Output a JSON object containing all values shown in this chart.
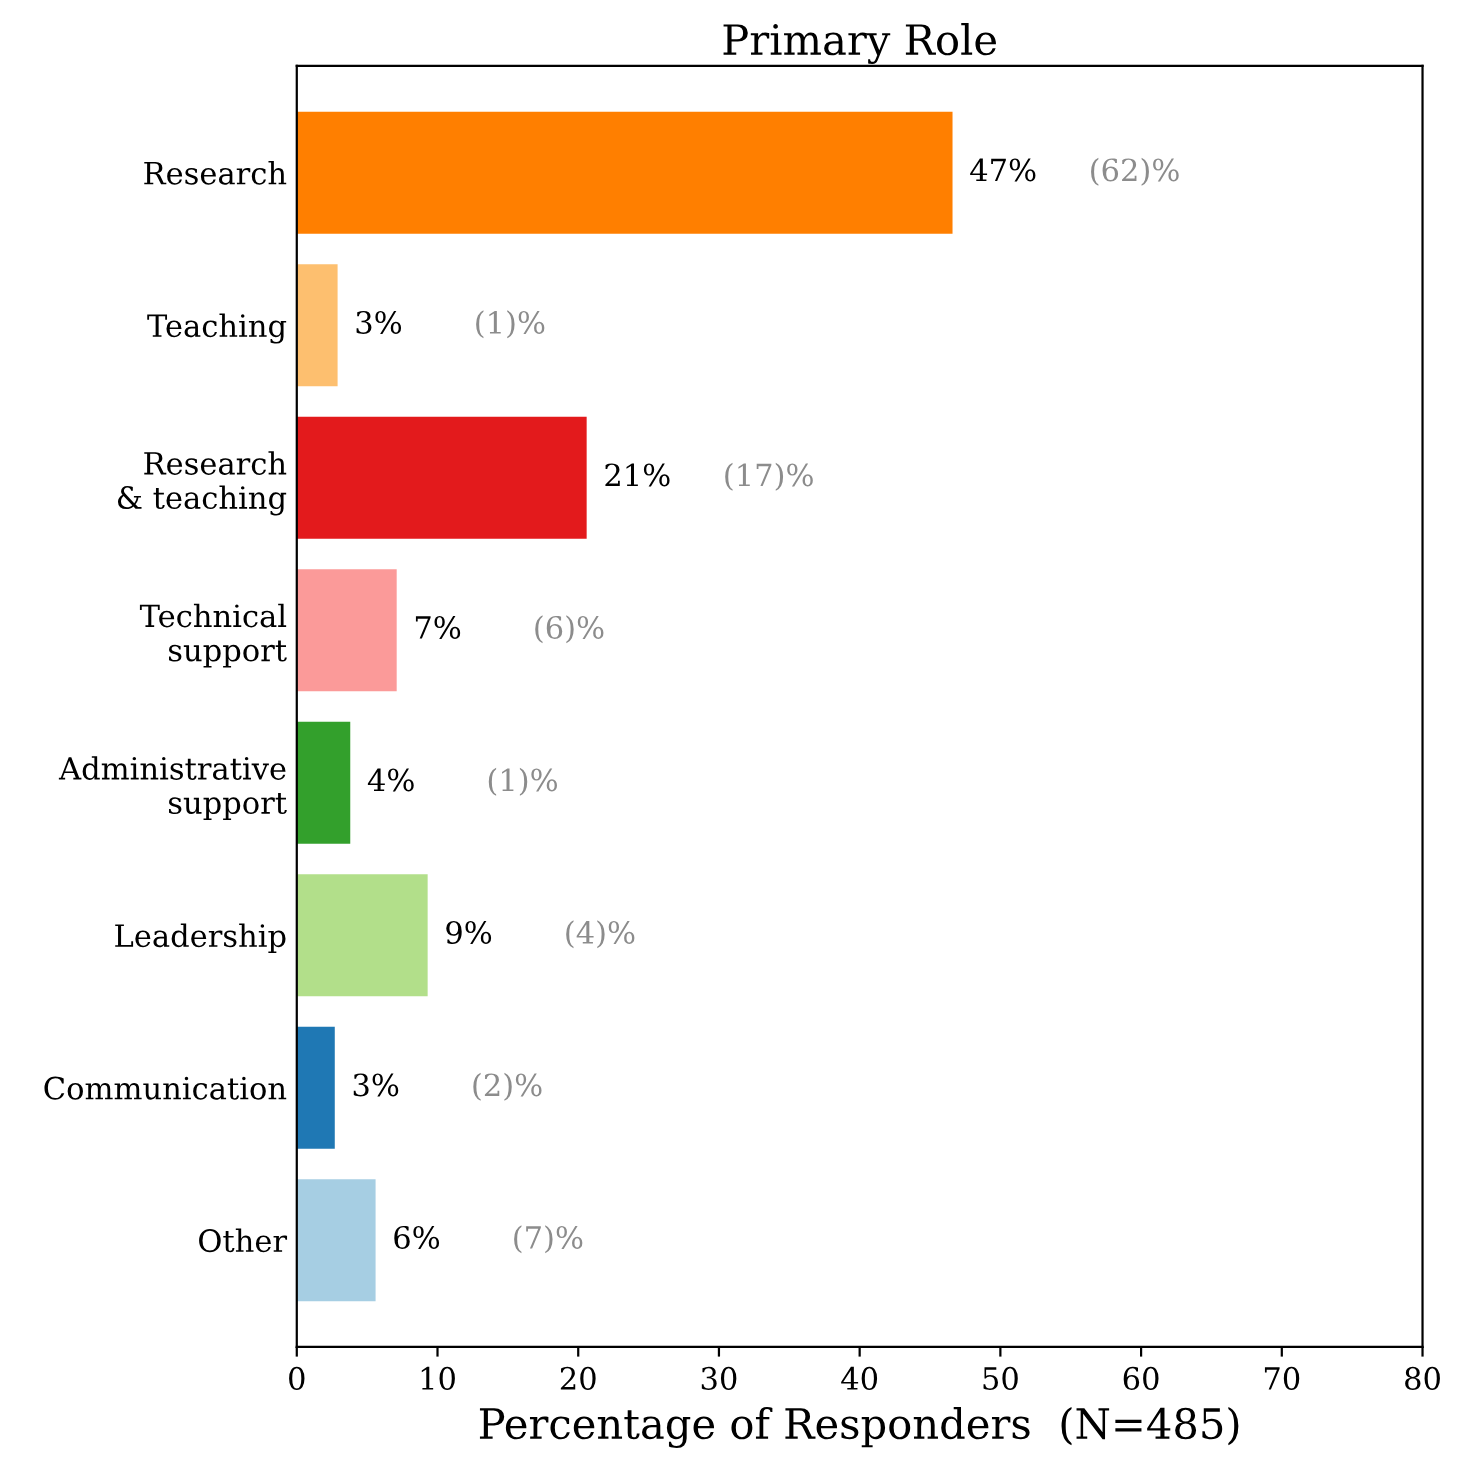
{
  "chart_data": {
    "type": "bar",
    "orientation": "horizontal",
    "title": "Primary Role",
    "xlabel": "Percentage of Responders  (N=485)",
    "categories": [
      "Research",
      "Teaching",
      "Research\n& teaching",
      "Technical\nsupport",
      "Administrative\nsupport",
      "Leadership",
      "Communication",
      "Other"
    ],
    "values": [
      46.6,
      2.9,
      20.6,
      7.1,
      3.8,
      9.3,
      2.7,
      5.6
    ],
    "colors": [
      "#ff7f00",
      "#fdbf6f",
      "#e31a1c",
      "#fb9a99",
      "#33a02c",
      "#b2df8a",
      "#1f78b4",
      "#a6cee3"
    ],
    "value_labels": [
      "47%",
      "3%",
      "21%",
      "7%",
      "4%",
      "9%",
      "3%",
      "6%"
    ],
    "annotations": [
      "(62)%",
      "(1)%",
      "(17)%",
      "(6)%",
      "(1)%",
      "(4)%",
      "(2)%",
      "(7)%"
    ],
    "xlim": [
      0,
      80
    ],
    "xticks": [
      0,
      10,
      20,
      30,
      40,
      50,
      60,
      70,
      80
    ],
    "grid": false,
    "legend": false
  }
}
